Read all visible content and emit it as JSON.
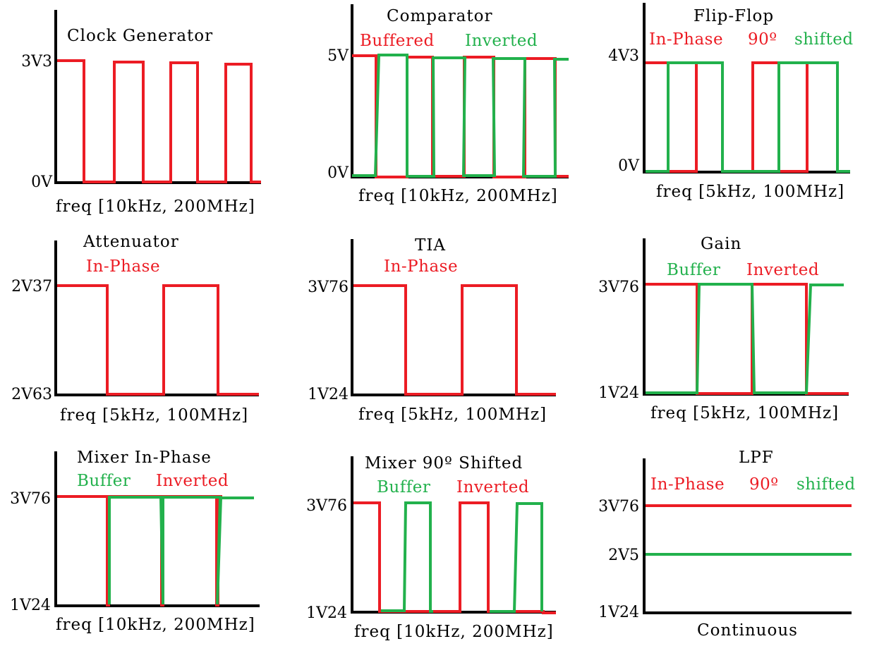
{
  "colors": {
    "red": "#ec1c24",
    "green": "#22b14c",
    "axis": "#000000"
  },
  "panels": [
    {
      "id": "clock-generator",
      "title": "Clock  Generator",
      "legend": [],
      "y_labels": [
        "3V3",
        "0V"
      ],
      "x_label": "freq [10kHz, 200MHz]",
      "series": [
        {
          "color": "red",
          "kind": "square",
          "periods": 4,
          "duty": 0.5,
          "start": "high"
        }
      ]
    },
    {
      "id": "comparator",
      "title": "Comparator",
      "legend": [
        {
          "text": "Buffered",
          "color": "red"
        },
        {
          "text": "Inverted",
          "color": "green"
        }
      ],
      "y_labels": [
        "5V",
        "0V"
      ],
      "x_label": "freq [10kHz, 200MHz]",
      "series": [
        {
          "color": "red",
          "kind": "square",
          "periods": 4.5,
          "duty": 0.5,
          "start": "high"
        },
        {
          "color": "green",
          "kind": "square",
          "periods": 4.5,
          "duty": 0.5,
          "start": "low"
        }
      ]
    },
    {
      "id": "flip-flop",
      "title": "Flip-Flop",
      "legend": [
        {
          "text": "In-Phase",
          "color": "red"
        },
        {
          "text": "90º",
          "color": "red"
        },
        {
          "text": "shifted",
          "color": "green"
        }
      ],
      "y_labels": [
        "4V3",
        "0V"
      ],
      "x_label": "freq [5kHz, 100MHz]",
      "series": [
        {
          "color": "red",
          "kind": "square",
          "periods": 4,
          "duty": 0.5,
          "start": "high"
        },
        {
          "color": "green",
          "kind": "square",
          "periods": 2,
          "duty": 0.5,
          "start": "high",
          "phase": 0.125
        }
      ]
    },
    {
      "id": "attenuator",
      "title": "Attenuator",
      "legend": [
        {
          "text": "In-Phase",
          "color": "red"
        }
      ],
      "y_labels": [
        "2V37",
        "2V63"
      ],
      "x_label": "freq [5kHz, 100MHz]",
      "series": [
        {
          "color": "red",
          "kind": "square",
          "periods": 2,
          "duty": 0.5,
          "start": "high"
        }
      ]
    },
    {
      "id": "tia",
      "title": "TIA",
      "legend": [
        {
          "text": "In-Phase",
          "color": "red"
        }
      ],
      "y_labels": [
        "3V76",
        "1V24"
      ],
      "x_label": "freq [5kHz, 100MHz]",
      "series": [
        {
          "color": "red",
          "kind": "square",
          "periods": 2,
          "duty": 0.5,
          "start": "high"
        }
      ]
    },
    {
      "id": "gain",
      "title": "Gain",
      "legend": [
        {
          "text": "Buffer",
          "color": "green"
        },
        {
          "text": "Inverted",
          "color": "red"
        }
      ],
      "y_labels": [
        "3V76",
        "1V24"
      ],
      "x_label": "freq [5kHz, 100MHz]",
      "series": [
        {
          "color": "red",
          "kind": "square",
          "periods": 2,
          "duty": 0.5,
          "start": "high"
        },
        {
          "color": "green",
          "kind": "square",
          "periods": 2,
          "duty": 0.5,
          "start": "low"
        }
      ]
    },
    {
      "id": "mixer-in-phase",
      "title": "Mixer  In-Phase",
      "legend": [
        {
          "text": "Buffer",
          "color": "green"
        },
        {
          "text": "Inverted",
          "color": "red"
        }
      ],
      "y_labels": [
        "3V76",
        "1V24"
      ],
      "x_label": "freq [10kHz, 200MHz]",
      "series": [
        {
          "color": "red",
          "kind": "pulse",
          "pulses": 3
        },
        {
          "color": "green",
          "kind": "pulse",
          "pulses": 3
        }
      ]
    },
    {
      "id": "mixer-90-shifted",
      "title": "Mixer  90º  Shifted",
      "legend": [
        {
          "text": "Buffer",
          "color": "green"
        },
        {
          "text": "Inverted",
          "color": "red"
        }
      ],
      "y_labels": [
        "3V76",
        "1V24"
      ],
      "x_label": "freq [10kHz, 200MHz]",
      "series": [
        {
          "color": "red",
          "kind": "square",
          "periods": 2,
          "duty": 0.25,
          "start": "high"
        },
        {
          "color": "green",
          "kind": "square",
          "periods": 2,
          "duty": 0.25,
          "start": "high",
          "phase": 0.5
        }
      ]
    },
    {
      "id": "lpf",
      "title": "LPF",
      "legend": [
        {
          "text": "In-Phase",
          "color": "red"
        },
        {
          "text": "90º",
          "color": "red"
        },
        {
          "text": "shifted",
          "color": "green"
        }
      ],
      "y_labels": [
        "3V76",
        "2V5",
        "1V24"
      ],
      "x_label": "Continuous",
      "series": [
        {
          "color": "red",
          "kind": "dc",
          "level": 3.76
        },
        {
          "color": "green",
          "kind": "dc",
          "level": 2.5
        }
      ]
    }
  ]
}
